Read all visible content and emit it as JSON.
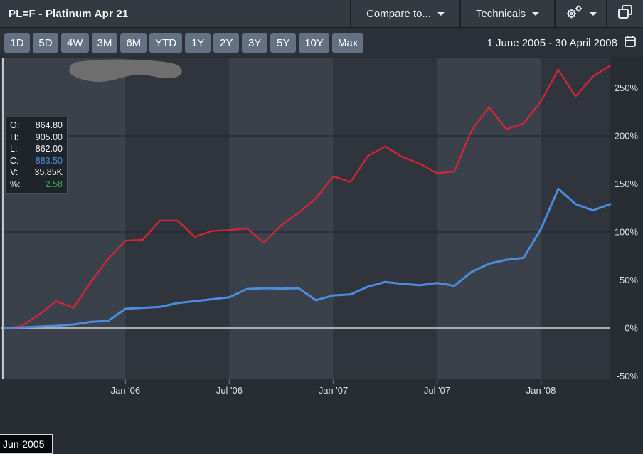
{
  "titlebar": {
    "title": "PL=F - Platinum Apr 21",
    "compare_label": "Compare to...",
    "technicals_label": "Technicals"
  },
  "toolbar": {
    "ranges": [
      "1D",
      "5D",
      "4W",
      "3M",
      "6M",
      "YTD",
      "1Y",
      "2Y",
      "3Y",
      "5Y",
      "10Y",
      "Max"
    ],
    "date_range": "1 June 2005 - 30 April 2008"
  },
  "legend": {
    "rows": [
      {
        "label": "O:",
        "value": "864.80",
        "color": "#eef1f3"
      },
      {
        "label": "H:",
        "value": "905.00",
        "color": "#eef1f3"
      },
      {
        "label": "L:",
        "value": "862.00",
        "color": "#eef1f3"
      },
      {
        "label": "C:",
        "value": "883.50",
        "color": "#4a8de0"
      },
      {
        "label": "V:",
        "value": "35.85K",
        "color": "#eef1f3"
      },
      {
        "label": "%:",
        "value": "2.58",
        "color": "#2fae4e"
      }
    ]
  },
  "tooltip": {
    "date_label": "Jun-2005"
  },
  "colors": {
    "accent_blue": "#4a8de0",
    "accent_red": "#dc2238",
    "positive_green": "#2fae4e",
    "margin_bg": "#282d34",
    "band_dark": "#30353d",
    "band_light": "#3a414a",
    "gridline": "#23262c",
    "zero_line": "#a9adb2",
    "crosshair": "#c3c7cc",
    "tick_mark": "#5c6167",
    "axis_text": "#dde0e4",
    "redaction": "#6e6e6e"
  },
  "chart_data": {
    "type": "line",
    "title": "PL=F - Platinum percent change, 1 June 2005 - 30 April 2008",
    "x_start": "Jun 2005",
    "x_end": "Apr 2008",
    "x_interval": "monthly",
    "x_tick_labels": [
      "Jan '06",
      "Jul '06",
      "Jan '07",
      "Jul '07",
      "Jan '08"
    ],
    "x_tick_indices": [
      7,
      13,
      19,
      25,
      31
    ],
    "y_ticks": [
      -50,
      0,
      50,
      100,
      150,
      200,
      250
    ],
    "y_tick_labels": [
      "-50%",
      "0%",
      "50%",
      "100%",
      "150%",
      "200%",
      "250%"
    ],
    "ylim": [
      -53,
      281
    ],
    "grid": "horizontal",
    "legend_position": "none",
    "series": [
      {
        "name": "red",
        "color": "#dc2238",
        "line_width": 2.2,
        "values": [
          0,
          2,
          14,
          28,
          21,
          48,
          72,
          91,
          92,
          112,
          112,
          95,
          101,
          102,
          104,
          89,
          107,
          120,
          135,
          158,
          152,
          179,
          189,
          178,
          171,
          161,
          163,
          206,
          230,
          207,
          213,
          236,
          269,
          241,
          262,
          273
        ]
      },
      {
        "name": "blue",
        "color": "#4a8de0",
        "line_width": 3,
        "values": [
          0,
          0.5,
          1.5,
          2.2,
          3.7,
          6.4,
          7.5,
          20,
          21,
          22,
          26,
          28,
          30,
          32,
          40.5,
          41.5,
          41,
          41.5,
          29,
          34,
          35,
          43,
          48,
          46,
          44.5,
          47,
          44,
          58.5,
          67,
          71,
          73,
          103,
          145,
          129,
          122.5,
          129
        ]
      }
    ]
  }
}
